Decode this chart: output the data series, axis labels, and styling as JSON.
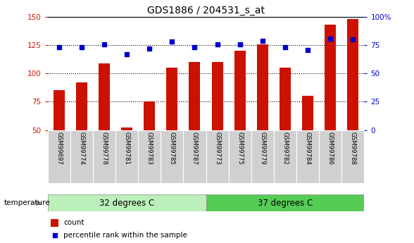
{
  "title": "GDS1886 / 204531_s_at",
  "samples": [
    "GSM99697",
    "GSM99774",
    "GSM99778",
    "GSM99781",
    "GSM99783",
    "GSM99785",
    "GSM99787",
    "GSM99773",
    "GSM99775",
    "GSM99779",
    "GSM99782",
    "GSM99784",
    "GSM99786",
    "GSM99788"
  ],
  "counts": [
    85,
    92,
    109,
    52,
    75,
    105,
    110,
    110,
    120,
    126,
    105,
    80,
    143,
    148
  ],
  "percentiles": [
    73,
    73,
    76,
    67,
    72,
    78,
    73,
    76,
    76,
    79,
    73,
    71,
    81,
    80
  ],
  "group1_label": "32 degrees C",
  "group1_count": 7,
  "group2_label": "37 degrees C",
  "group2_count": 7,
  "temperature_label": "temperature",
  "ylim_left": [
    50,
    150
  ],
  "ylim_right": [
    0,
    100
  ],
  "yticks_left": [
    50,
    75,
    100,
    125,
    150
  ],
  "yticks_right": [
    0,
    25,
    50,
    75,
    100
  ],
  "bar_color": "#cc1100",
  "dot_color": "#0000cc",
  "bg_group1": "#bbf0bb",
  "bg_group2": "#55cc55",
  "left_tick_color": "#cc1100",
  "right_tick_color": "#0000cc",
  "bar_width": 0.5,
  "legend_count_label": "count",
  "legend_pct_label": "percentile rank within the sample"
}
